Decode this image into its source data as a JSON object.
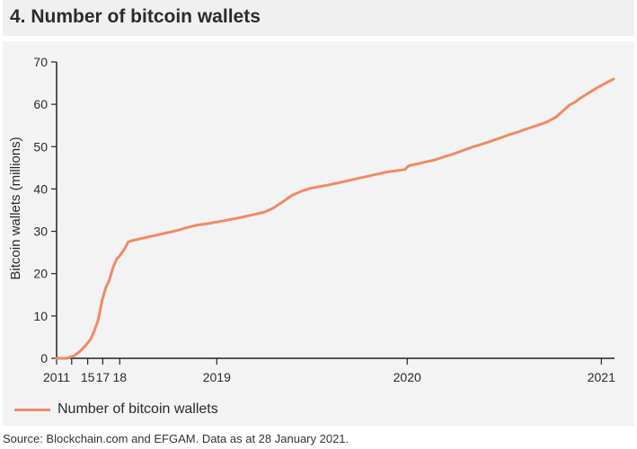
{
  "title": "4. Number of bitcoin wallets",
  "source": "Source: Blockchain.com and EFGAM. Data as at 28 January 2021.",
  "colors": {
    "line": "#f08a63",
    "panel": "#f3f3f3",
    "axis": "#222222"
  },
  "chart_data": {
    "type": "line",
    "title": "4. Number of bitcoin wallets",
    "xlabel": "",
    "ylabel": "Bitcoin wallets (millions)",
    "ylim": [
      0,
      70
    ],
    "yticks": [
      0,
      10,
      20,
      30,
      40,
      50,
      60,
      70
    ],
    "grid": false,
    "legend": "bottom-left",
    "xticks": [
      {
        "value": 0,
        "label": "2011"
      },
      {
        "value": 0.8,
        "label": ""
      },
      {
        "value": 1.65,
        "label": "15"
      },
      {
        "value": 2.45,
        "label": "17"
      },
      {
        "value": 3.35,
        "label": "18"
      },
      {
        "value": 8.5,
        "label": "2019"
      },
      {
        "value": 18.6,
        "label": "2020"
      },
      {
        "value": 28.9,
        "label": "2021"
      }
    ],
    "xlim": [
      0,
      29.6
    ],
    "series": [
      {
        "name": "Number of bitcoin wallets",
        "x": [
          0,
          0.5,
          0.9,
          1.2,
          1.5,
          1.8,
          2.0,
          2.2,
          2.4,
          2.6,
          2.8,
          3.0,
          3.2,
          3.4,
          3.6,
          3.8,
          4.0,
          4.2,
          4.4,
          4.6,
          4.8,
          5.2,
          5.8,
          6.4,
          7.0,
          7.5,
          8.0,
          8.5,
          9.0,
          9.5,
          10.0,
          10.5,
          11.0,
          11.5,
          12.0,
          12.5,
          13.0,
          13.5,
          14.0,
          14.5,
          15.0,
          15.5,
          16.0,
          16.5,
          17.0,
          17.5,
          18.0,
          18.5,
          18.6,
          18.7,
          19.0,
          19.5,
          20.0,
          20.5,
          21.0,
          21.5,
          22.0,
          22.5,
          23.0,
          23.5,
          24.0,
          24.5,
          25.0,
          25.5,
          26.0,
          26.5,
          27.0,
          27.2,
          27.5,
          27.8,
          28.2,
          28.6,
          29.0,
          29.3,
          29.55
        ],
        "values": [
          0,
          0,
          0.5,
          1.5,
          2.8,
          4.5,
          6.5,
          9.0,
          13.5,
          16.5,
          18.5,
          21.5,
          23.5,
          24.5,
          25.8,
          27.5,
          27.8,
          28.0,
          28.2,
          28.4,
          28.6,
          29.0,
          29.6,
          30.2,
          31.0,
          31.5,
          31.8,
          32.2,
          32.6,
          33.0,
          33.5,
          34.0,
          34.5,
          35.5,
          37.0,
          38.5,
          39.5,
          40.2,
          40.6,
          41.0,
          41.5,
          42.0,
          42.5,
          43.0,
          43.5,
          44.0,
          44.3,
          44.6,
          45.2,
          45.5,
          45.8,
          46.3,
          46.8,
          47.5,
          48.2,
          49.0,
          49.8,
          50.5,
          51.2,
          52.0,
          52.8,
          53.5,
          54.3,
          55.0,
          55.8,
          57.0,
          59.0,
          59.8,
          60.5,
          61.5,
          62.6,
          63.7,
          64.7,
          65.4,
          66.0
        ]
      }
    ]
  }
}
